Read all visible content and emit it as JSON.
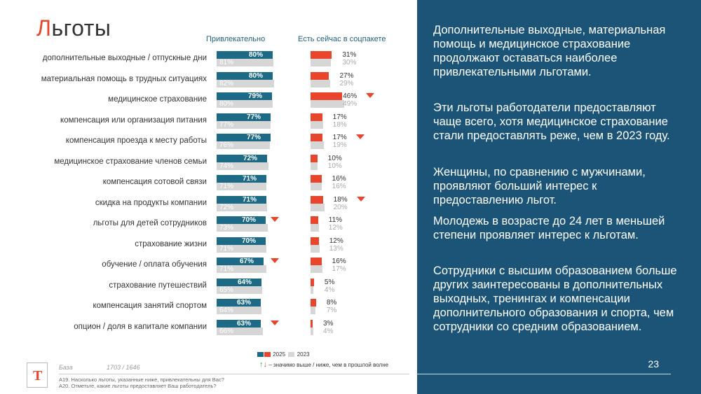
{
  "title_first": "Л",
  "title_rest": "ьготы",
  "headers": {
    "attractive": "Привлекательно",
    "now": "Есть сейчас в соцпакете"
  },
  "chart_data": {
    "type": "bar",
    "categories": [
      "дополнительные выходные / отпускные дни",
      "материальная помощь в трудных ситуациях",
      "медицинское страхование",
      "компенсация или организация питания",
      "компенсация проезда к месту работы",
      "медицинское страхование членов семьи",
      "компенсация сотовой связи",
      "скидка на продукты компании",
      "льготы для детей сотрудников",
      "страхование жизни",
      "обучение / оплата обучения",
      "страхование путешествий",
      "компенсация занятий спортом",
      "опцион / доля в капитале компании"
    ],
    "panels": [
      {
        "name": "Привлекательно",
        "series": [
          {
            "name": "2025",
            "values": [
              80,
              80,
              79,
              77,
              77,
              72,
              71,
              71,
              70,
              70,
              67,
              64,
              63,
              63
            ]
          },
          {
            "name": "2023",
            "values": [
              81,
              82,
              80,
              77,
              76,
              74,
              71,
              72,
              73,
              71,
              71,
              65,
              64,
              66
            ]
          }
        ],
        "down_flags": [
          false,
          false,
          false,
          false,
          false,
          false,
          false,
          false,
          true,
          false,
          true,
          false,
          false,
          true
        ]
      },
      {
        "name": "Есть сейчас в соцпакете",
        "series": [
          {
            "name": "2025",
            "values": [
              31,
              27,
              46,
              17,
              17,
              10,
              16,
              18,
              11,
              12,
              16,
              5,
              8,
              3
            ]
          },
          {
            "name": "2023",
            "values": [
              30,
              29,
              49,
              18,
              19,
              10,
              16,
              20,
              12,
              13,
              17,
              4,
              7,
              4
            ]
          }
        ],
        "down_flags": [
          false,
          false,
          true,
          false,
          true,
          false,
          false,
          true,
          false,
          false,
          false,
          false,
          false,
          false
        ]
      }
    ],
    "xlim": [
      0,
      100
    ],
    "legend": [
      "2025",
      "2023"
    ],
    "legend_placement": "bottom"
  },
  "legend_note": "– значимо выше / ниже, чем в прошлой волне",
  "base_label": "База",
  "base_value": "1703 / 1646",
  "footnote_1": "A19. Насколько льготы, указанные ниже, привлекательны для Вас?",
  "footnote_2": "A20. Отметьте, какие льготы предоставляет Ваш работодатель?",
  "logo_letter": "Т",
  "panel_text": [
    "Дополнительные выходные, материальная помощь и медицинское страхование продолжают оставаться наиболее привлекательными льготами.",
    "Эти льготы работодатели предоставляют чаще всего, хотя медицинское страхование стали предоставлять реже, чем в 2023 году.",
    "Женщины, по сравнению с мужчинами, проявляют больший интерес к предоставлению льгот.",
    "Молодежь в возрасте до 24 лет в меньшей степени проявляет интерес к льготам.",
    "Сотрудники с высшим образованием больше других заинтересованы в дополнительных выходных, тренингах и компенсации дополнительного образования и спорта, чем сотрудники со средним образованием."
  ],
  "page_number": "23",
  "colors": {
    "teal": "#1c6a85",
    "red": "#e8452c",
    "grey": "#d6d6d6",
    "panel": "#1c5478"
  }
}
